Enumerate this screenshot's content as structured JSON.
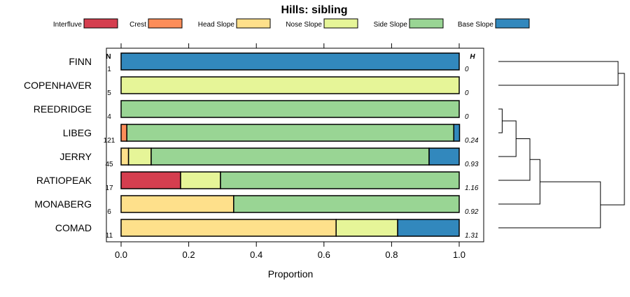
{
  "chart_data": {
    "type": "bar",
    "orientation": "horizontal",
    "stacked": true,
    "title": "Hills: sibling",
    "xlabel": "Proportion",
    "xlim": [
      0,
      1
    ],
    "x_ticks": [
      0.0,
      0.2,
      0.4,
      0.6,
      0.8,
      1.0
    ],
    "x_tick_labels": [
      "0.0",
      "0.2",
      "0.4",
      "0.6",
      "0.8",
      "1.0"
    ],
    "n_header": "N",
    "h_header": "H",
    "legend": [
      {
        "name": "Interfluve",
        "color": "#d53e4f"
      },
      {
        "name": "Crest",
        "color": "#fc8d59"
      },
      {
        "name": "Head Slope",
        "color": "#fee08b"
      },
      {
        "name": "Nose Slope",
        "color": "#e6f598"
      },
      {
        "name": "Side Slope",
        "color": "#99d594"
      },
      {
        "name": "Base Slope",
        "color": "#3288bd"
      }
    ],
    "categories": [
      "FINN",
      "COPENHAVER",
      "REEDRIDGE",
      "LIBEG",
      "JERRY",
      "RATIOPEAK",
      "MONABERG",
      "COMAD"
    ],
    "n_values": [
      "1",
      "5",
      "4",
      "121",
      "45",
      "17",
      "6",
      "11"
    ],
    "h_values": [
      "0",
      "0",
      "0",
      "0.24",
      "0.93",
      "1.16",
      "0.92",
      "1.31"
    ],
    "series": [
      {
        "name": "Interfluve",
        "values": [
          0,
          0,
          0,
          0,
          0,
          0.176,
          0,
          0
        ]
      },
      {
        "name": "Crest",
        "values": [
          0,
          0,
          0,
          0.017,
          0,
          0,
          0,
          0
        ]
      },
      {
        "name": "Head Slope",
        "values": [
          0,
          0,
          0,
          0,
          0.022,
          0,
          0.333,
          0.636
        ]
      },
      {
        "name": "Nose Slope",
        "values": [
          0,
          1,
          0,
          0,
          0.067,
          0.118,
          0,
          0.182
        ]
      },
      {
        "name": "Side Slope",
        "values": [
          0,
          0,
          1,
          0.967,
          0.822,
          0.706,
          0.667,
          0
        ]
      },
      {
        "name": "Base Slope",
        "values": [
          1,
          0,
          0,
          0.017,
          0.089,
          0,
          0,
          0.182
        ]
      }
    ],
    "dendrogram": {
      "leaf_order": [
        "FINN",
        "COPENHAVER",
        "REEDRIDGE",
        "LIBEG",
        "JERRY",
        "RATIOPEAK",
        "MONABERG",
        "COMAD"
      ],
      "merges": [
        {
          "left": "REEDRIDGE",
          "right": "LIBEG",
          "height": 0.03
        },
        {
          "left": "REEDRIDGE+LIBEG",
          "right": "JERRY",
          "height": 0.14
        },
        {
          "left": "REEDRIDGE+LIBEG+JERRY",
          "right": "RATIOPEAK",
          "height": 0.25
        },
        {
          "left": "REEDRIDGE..RATIOPEAK",
          "right": "MONABERG",
          "height": 0.33
        },
        {
          "left": "REEDRIDGE..MONABERG",
          "right": "COMAD",
          "height": 0.81
        },
        {
          "left": "FINN",
          "right": "COPENHAVER",
          "height": 0.95
        },
        {
          "left": "FINN+COPENHAVER",
          "right": "REEDRIDGE..COMAD",
          "height": 1.0
        }
      ]
    }
  }
}
